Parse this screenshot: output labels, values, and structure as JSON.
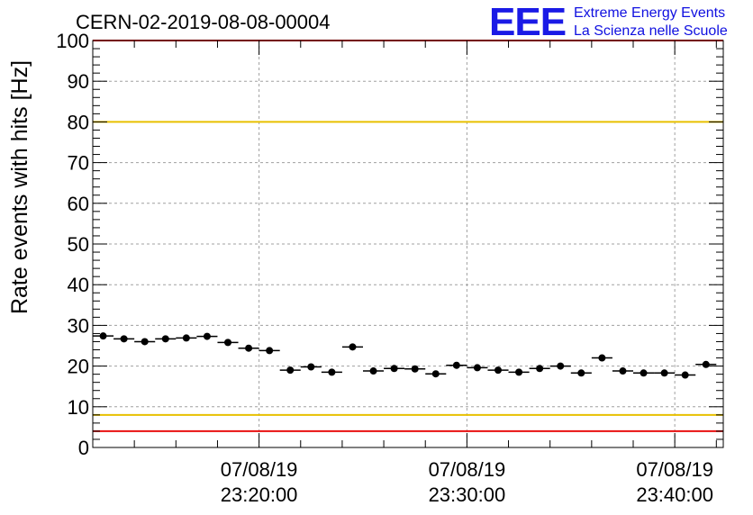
{
  "chart_data": {
    "type": "scatter",
    "title": "CERN-02-2019-08-08-00004",
    "ylabel": "Rate events with hits [Hz]",
    "xlabel": "",
    "ylim": [
      0,
      100
    ],
    "yticks": [
      0,
      10,
      20,
      30,
      40,
      50,
      60,
      70,
      80,
      90,
      100
    ],
    "xlim": [
      "07/08/19 23:12:00",
      "07/08/19 23:42:20"
    ],
    "xticks": [
      {
        "x": "07/08/19 23:20:00",
        "date": "07/08/19",
        "time": "23:20:00"
      },
      {
        "x": "07/08/19 23:30:00",
        "date": "07/08/19",
        "time": "23:30:00"
      },
      {
        "x": "07/08/19 23:40:00",
        "date": "07/08/19",
        "time": "23:40:00"
      }
    ],
    "grid": true,
    "x": [
      "23:12:30",
      "23:13:30",
      "23:14:30",
      "23:15:30",
      "23:16:30",
      "23:17:30",
      "23:18:30",
      "23:19:30",
      "23:20:30",
      "23:21:30",
      "23:22:30",
      "23:23:30",
      "23:24:30",
      "23:25:30",
      "23:26:30",
      "23:27:30",
      "23:28:30",
      "23:29:30",
      "23:30:30",
      "23:31:30",
      "23:32:30",
      "23:33:30",
      "23:34:30",
      "23:35:30",
      "23:36:30",
      "23:37:30",
      "23:38:30",
      "23:39:30",
      "23:40:30",
      "23:41:30"
    ],
    "values": [
      27.4,
      26.7,
      26.0,
      26.7,
      26.9,
      27.3,
      25.8,
      24.4,
      23.8,
      19.0,
      19.8,
      18.5,
      24.7,
      18.8,
      19.4,
      19.3,
      18.1,
      20.2,
      19.6,
      19.0,
      18.5,
      19.4,
      20.0,
      18.3,
      22.0,
      18.8,
      18.3,
      18.3,
      17.8,
      20.4
    ],
    "x_bin_width": "1 min",
    "reference_lines": [
      {
        "y": 80,
        "color": "#e8c000"
      },
      {
        "y": 8,
        "color": "#e8c000"
      },
      {
        "y": 4,
        "color": "#e81010"
      },
      {
        "y": 100,
        "color": "#e81010"
      }
    ]
  },
  "logo": {
    "mark": "EEE",
    "line1": "Extreme Energy Events",
    "line2": "La Scienza nelle Scuole"
  },
  "colors": {
    "marker": "#000000",
    "grid": "#a0a0a0",
    "yellow_line": "#e8c000",
    "red_line": "#e81010",
    "logo": "#1a1ae6"
  }
}
